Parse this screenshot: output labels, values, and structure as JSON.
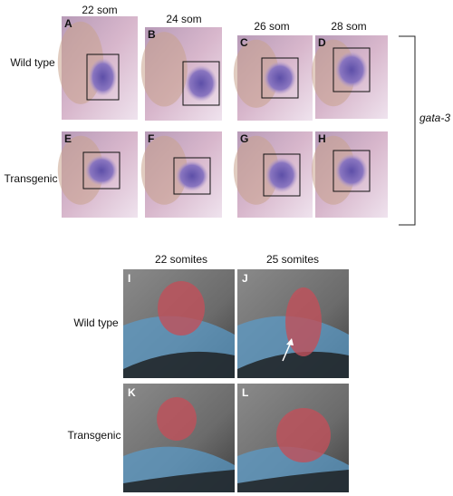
{
  "top": {
    "columns": [
      "22 som",
      "24 som",
      "26 som",
      "28 som"
    ],
    "rows": [
      "Wild type",
      "Transgenic"
    ],
    "panels": [
      "A",
      "B",
      "C",
      "D",
      "E",
      "F",
      "G",
      "H"
    ],
    "gene": "gata-3"
  },
  "bottom": {
    "columns": [
      "22 somites",
      "25 somites"
    ],
    "rows": [
      "Wild type",
      "Transgenic"
    ],
    "panels": [
      "I",
      "J",
      "K",
      "L"
    ]
  }
}
